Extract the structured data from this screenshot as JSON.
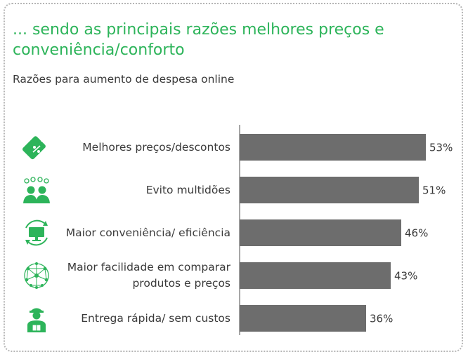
{
  "header": {
    "title": "... sendo as principais razões melhores preços e conveniência/conforto",
    "subtitle": "Razões para aumento de despesa online"
  },
  "colors": {
    "accent": "#2db45a",
    "bar": "#6d6d6d",
    "text": "#3a3a3a"
  },
  "chart_data": {
    "type": "bar",
    "orientation": "horizontal",
    "categories": [
      "Melhores preços/descontos",
      "Evito multidões",
      "Maior conveniência/ eficiência",
      "Maior facilidade em comparar produtos e preços",
      "Entrega rápida/ sem custos"
    ],
    "values": [
      53,
      51,
      46,
      43,
      36
    ],
    "data_labels": [
      "53%",
      "51%",
      "46%",
      "43%",
      "36%"
    ],
    "xlim": [
      0,
      100
    ],
    "grid": false,
    "icons": [
      "price-tag-icon",
      "crowd-icon",
      "monitor-cycle-icon",
      "network-globe-icon",
      "delivery-person-icon"
    ]
  }
}
